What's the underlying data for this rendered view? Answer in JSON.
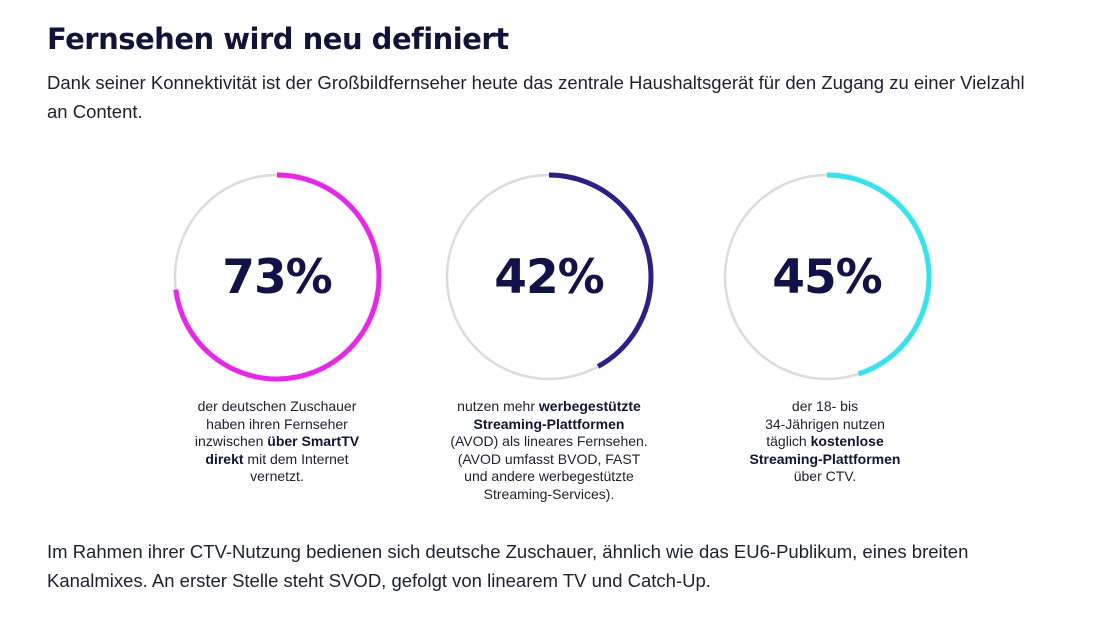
{
  "header": {
    "title": "Fernsehen wird neu definiert",
    "intro": "Dank seiner Konnektivität ist der Großbildfernseher heute das zentrale Haushaltsgerät für den Zugang zu einer Vielzahl an Content."
  },
  "stats": [
    {
      "value_label": "73%",
      "fraction": 0.73,
      "color": "#ee22ee",
      "description": [
        {
          "text": "der deutschen Zuschauer",
          "bold": false
        },
        {
          "text": "haben ihren Fernseher",
          "bold": false
        },
        {
          "text": "inzwischen ",
          "bold": false
        },
        {
          "text": "über SmartTV",
          "bold": true
        },
        {
          "text": "direkt",
          "bold": true
        },
        {
          "text": " mit dem Internet",
          "bold": false
        },
        {
          "text": "vernetzt.",
          "bold": false
        }
      ]
    },
    {
      "value_label": "42%",
      "fraction": 0.42,
      "color": "#2a1f8c",
      "description": [
        {
          "text": "nutzen mehr ",
          "bold": false
        },
        {
          "text": "werbegestützte",
          "bold": true
        },
        {
          "text": "Streaming-Plattformen",
          "bold": true
        },
        {
          "text": "(AVOD) als lineares Fernsehen.",
          "bold": false
        },
        {
          "text": "(AVOD umfasst BVOD, FAST",
          "bold": false
        },
        {
          "text": "und andere werbegestützte",
          "bold": false
        },
        {
          "text": "Streaming-Services).",
          "bold": false
        }
      ]
    },
    {
      "value_label": "45%",
      "fraction": 0.45,
      "color": "#2ee6f0",
      "description": [
        {
          "text": "der 18- bis",
          "bold": false
        },
        {
          "text": "34-Jährigen nutzen",
          "bold": false
        },
        {
          "text": "täglich ",
          "bold": false
        },
        {
          "text": "kostenlose",
          "bold": true
        },
        {
          "text": "Streaming-Plattformen",
          "bold": true
        },
        {
          "text": "über CTV.",
          "bold": false
        }
      ]
    }
  ],
  "ring_track_color": "#dcdcdc",
  "footer": {
    "text": "Im Rahmen ihrer CTV-Nutzung bedienen sich deutsche Zuschauer, ähnlich wie das EU6-Publikum, eines breiten Kanalmixes. An erster Stelle steht SVOD, gefolgt von linearem TV und Catch-Up."
  }
}
